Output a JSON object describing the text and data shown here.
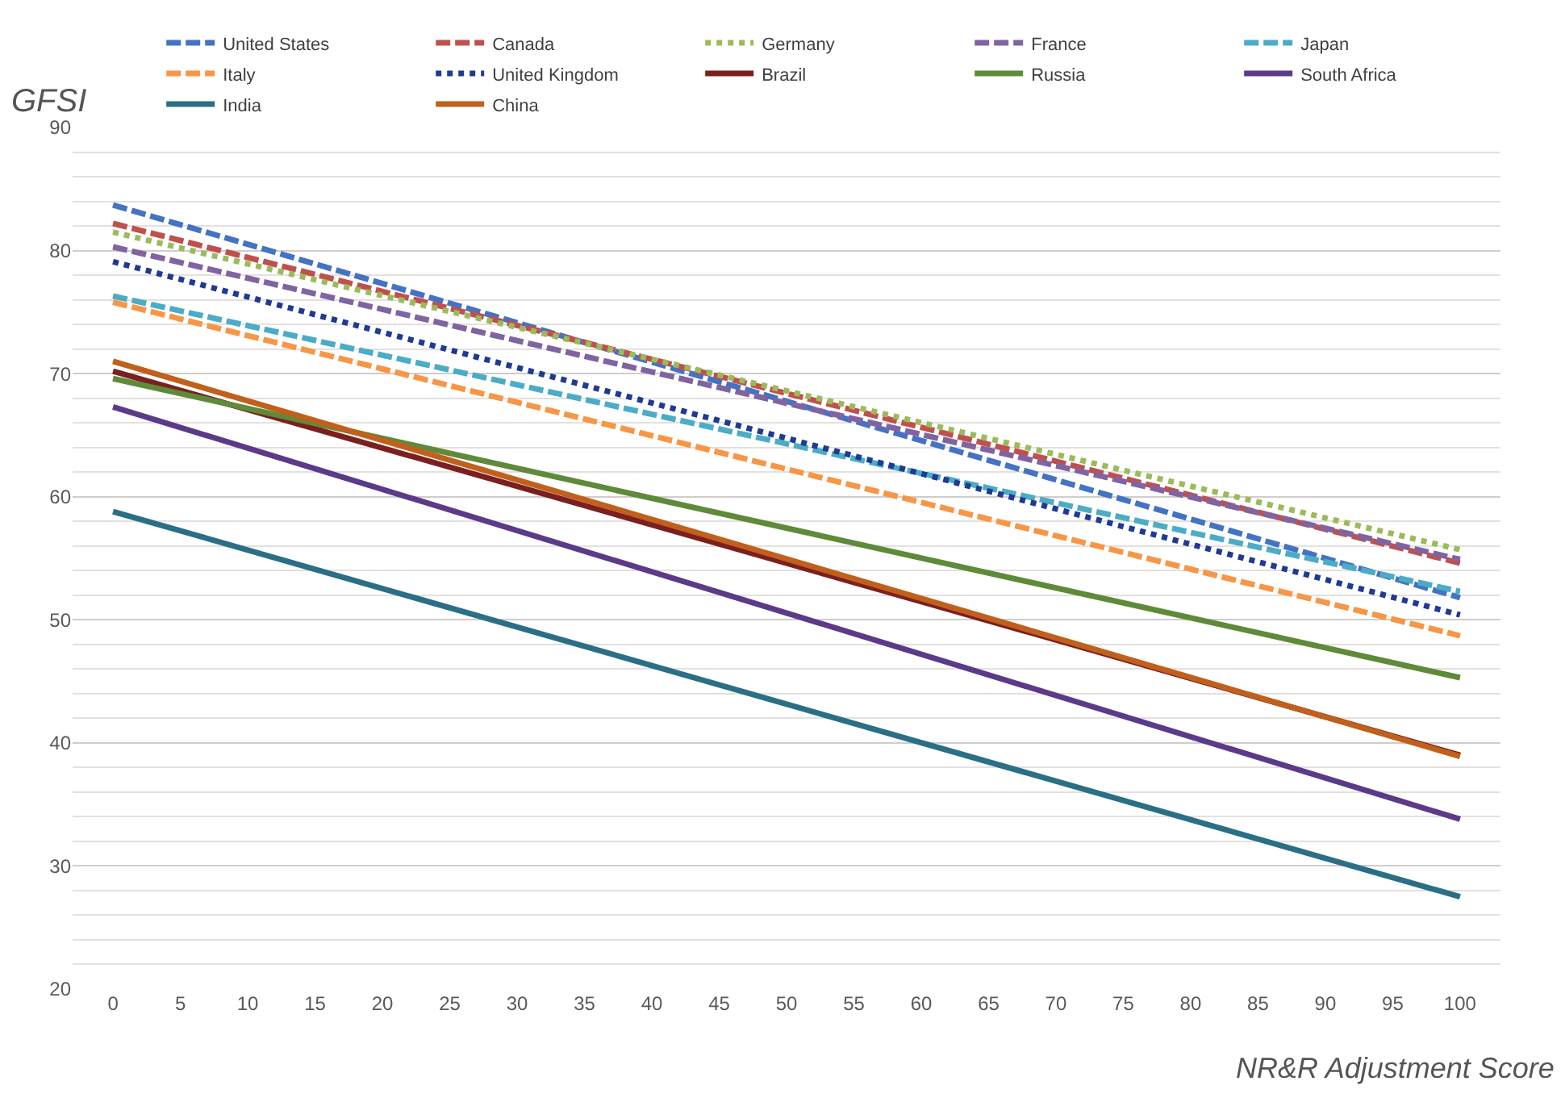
{
  "chart_data": {
    "type": "line",
    "xlabel": "NR&R Adjustment Score",
    "ylabel": "GFSI",
    "x": [
      0,
      100
    ],
    "xlim": [
      -3,
      103
    ],
    "xticks": [
      0,
      5,
      10,
      15,
      20,
      25,
      30,
      35,
      40,
      45,
      50,
      55,
      60,
      65,
      70,
      75,
      80,
      85,
      90,
      95,
      100
    ],
    "ylim": [
      20,
      90
    ],
    "yticks": [
      20,
      30,
      40,
      50,
      60,
      70,
      80,
      90
    ],
    "grid": "y",
    "legend": "top",
    "marker": "none",
    "series": [
      {
        "name": "United States",
        "color": "#4472c4",
        "line_style": "dashed",
        "values": [
          83.7,
          51.8
        ]
      },
      {
        "name": "Canada",
        "color": "#c0504d",
        "line_style": "dashed",
        "values": [
          82.2,
          54.6
        ]
      },
      {
        "name": "Germany",
        "color": "#9bbb59",
        "line_style": "dotted",
        "values": [
          81.5,
          55.7
        ]
      },
      {
        "name": "France",
        "color": "#8064a2",
        "line_style": "dashed",
        "values": [
          80.3,
          54.9
        ]
      },
      {
        "name": "Japan",
        "color": "#4bacc6",
        "line_style": "dashed",
        "values": [
          76.3,
          52.3
        ]
      },
      {
        "name": "Italy",
        "color": "#f79646",
        "line_style": "dashed",
        "values": [
          75.8,
          48.7
        ]
      },
      {
        "name": "United Kingdom",
        "color": "#1f3a93",
        "line_style": "dotted",
        "values": [
          79.1,
          50.4
        ]
      },
      {
        "name": "Brazil",
        "color": "#7b1f1f",
        "line_style": "solid",
        "values": [
          70.2,
          39.0
        ]
      },
      {
        "name": "Russia",
        "color": "#5f8a3a",
        "line_style": "solid",
        "values": [
          69.6,
          45.3
        ]
      },
      {
        "name": "South Africa",
        "color": "#5b3a8a",
        "line_style": "solid",
        "values": [
          67.3,
          33.8
        ]
      },
      {
        "name": "India",
        "color": "#2a6f86",
        "line_style": "solid",
        "values": [
          58.8,
          27.5
        ]
      },
      {
        "name": "China",
        "color": "#c0601c",
        "line_style": "solid",
        "values": [
          71.0,
          38.9
        ]
      }
    ]
  }
}
